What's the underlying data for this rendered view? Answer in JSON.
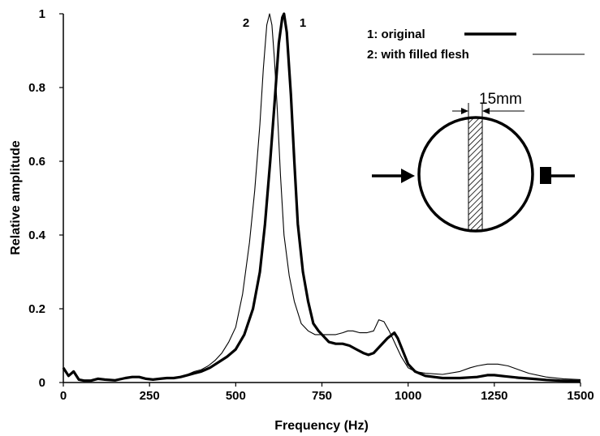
{
  "chart_data": {
    "type": "line",
    "xlabel": "Frequency (Hz)",
    "ylabel": "Relative amplitude",
    "xlim": [
      0,
      1500
    ],
    "ylim": [
      0,
      1
    ],
    "x_ticks": [
      0,
      250,
      500,
      750,
      1000,
      1250,
      1500
    ],
    "y_ticks": [
      0,
      0.2,
      0.4,
      0.6,
      0.8,
      1
    ],
    "y_tick_labels": [
      "0",
      "0.2",
      "0.4",
      "0.6",
      "0.8",
      "1"
    ],
    "grid": false,
    "legend_position": "top-right",
    "series": [
      {
        "name": "1: original",
        "peak_label": "1",
        "line_style": "thick",
        "color": "#000000",
        "x": [
          0,
          15,
          30,
          45,
          60,
          80,
          100,
          120,
          150,
          180,
          200,
          220,
          240,
          260,
          280,
          300,
          320,
          340,
          360,
          380,
          400,
          425,
          450,
          475,
          500,
          525,
          550,
          570,
          585,
          600,
          612,
          625,
          635,
          640,
          648,
          660,
          670,
          680,
          695,
          710,
          725,
          740,
          755,
          770,
          790,
          810,
          830,
          850,
          870,
          885,
          900,
          920,
          940,
          960,
          970,
          985,
          1000,
          1020,
          1050,
          1100,
          1150,
          1200,
          1230,
          1250,
          1280,
          1320,
          1360,
          1400,
          1440,
          1480,
          1500
        ],
        "values": [
          0.04,
          0.018,
          0.03,
          0.008,
          0.005,
          0.005,
          0.01,
          0.008,
          0.006,
          0.012,
          0.015,
          0.015,
          0.01,
          0.008,
          0.01,
          0.012,
          0.012,
          0.015,
          0.02,
          0.025,
          0.03,
          0.04,
          0.055,
          0.07,
          0.09,
          0.13,
          0.2,
          0.3,
          0.43,
          0.6,
          0.75,
          0.92,
          0.99,
          1.0,
          0.95,
          0.78,
          0.6,
          0.43,
          0.3,
          0.22,
          0.16,
          0.14,
          0.125,
          0.11,
          0.105,
          0.105,
          0.1,
          0.09,
          0.08,
          0.075,
          0.08,
          0.1,
          0.12,
          0.135,
          0.12,
          0.085,
          0.05,
          0.03,
          0.018,
          0.012,
          0.012,
          0.015,
          0.02,
          0.02,
          0.017,
          0.013,
          0.01,
          0.007,
          0.005,
          0.004,
          0.004
        ]
      },
      {
        "name": "2: with filled flesh",
        "peak_label": "2",
        "line_style": "thin",
        "color": "#000000",
        "x": [
          0,
          15,
          30,
          45,
          60,
          80,
          100,
          120,
          150,
          180,
          200,
          220,
          240,
          260,
          280,
          300,
          320,
          340,
          360,
          380,
          400,
          420,
          440,
          460,
          480,
          500,
          520,
          540,
          555,
          570,
          580,
          590,
          598,
          605,
          612,
          620,
          630,
          640,
          655,
          670,
          690,
          710,
          730,
          750,
          770,
          790,
          810,
          825,
          840,
          860,
          880,
          900,
          915,
          930,
          945,
          955,
          965,
          980,
          1000,
          1020,
          1050,
          1100,
          1150,
          1180,
          1200,
          1230,
          1260,
          1290,
          1320,
          1350,
          1400,
          1450,
          1500
        ],
        "values": [
          0.035,
          0.02,
          0.03,
          0.01,
          0.005,
          0.005,
          0.01,
          0.008,
          0.006,
          0.012,
          0.015,
          0.015,
          0.01,
          0.008,
          0.01,
          0.012,
          0.012,
          0.016,
          0.022,
          0.03,
          0.035,
          0.045,
          0.06,
          0.08,
          0.11,
          0.15,
          0.24,
          0.38,
          0.52,
          0.7,
          0.85,
          0.97,
          1.0,
          0.97,
          0.88,
          0.75,
          0.56,
          0.4,
          0.29,
          0.22,
          0.16,
          0.14,
          0.13,
          0.13,
          0.13,
          0.13,
          0.135,
          0.14,
          0.14,
          0.135,
          0.135,
          0.14,
          0.17,
          0.165,
          0.14,
          0.12,
          0.1,
          0.07,
          0.04,
          0.03,
          0.025,
          0.022,
          0.03,
          0.04,
          0.045,
          0.05,
          0.05,
          0.045,
          0.035,
          0.025,
          0.015,
          0.01,
          0.008
        ]
      }
    ]
  },
  "diagram": {
    "dimension_label": "15mm"
  }
}
